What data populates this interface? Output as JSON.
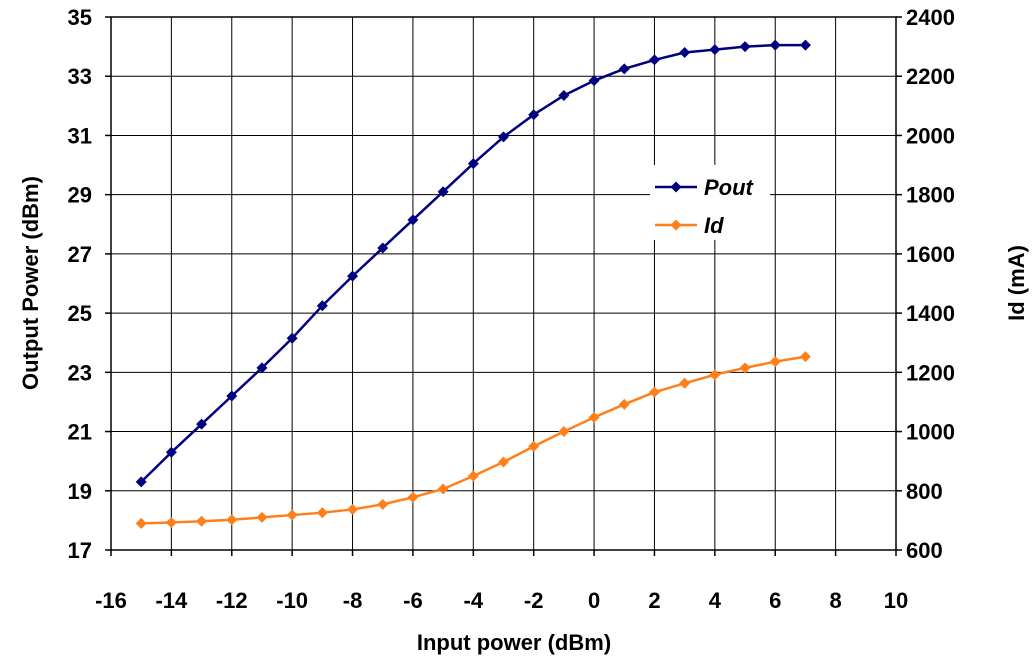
{
  "chart_data": {
    "type": "line",
    "xlabel": "Input power (dBm)",
    "ylabel": "Output Power (dBm)",
    "y2label": "Id (mA)",
    "xlim": [
      -16,
      10
    ],
    "ylim": [
      17,
      35
    ],
    "y2lim": [
      600,
      2400
    ],
    "xticks": [
      "-16",
      "-14",
      "-12",
      "-10",
      "-8",
      "-6",
      "-4",
      "-2",
      "0",
      "2",
      "4",
      "6",
      "8",
      "10"
    ],
    "yticks": [
      "17",
      "19",
      "21",
      "23",
      "25",
      "27",
      "29",
      "31",
      "33",
      "35"
    ],
    "y2ticks": [
      "600",
      "800",
      "1000",
      "1200",
      "1400",
      "1600",
      "1800",
      "2000",
      "2200",
      "2400"
    ],
    "x": [
      -15,
      -14,
      -13,
      -12,
      -11,
      -10,
      -9,
      -8,
      -7,
      -6,
      -5,
      -4,
      -3,
      -2,
      -1,
      0,
      1,
      2,
      3,
      4,
      5,
      6,
      7
    ],
    "grid": true,
    "legend_position": "center-right",
    "series": [
      {
        "name": "Pout",
        "axis": "left",
        "color": "#000080",
        "marker": "diamond",
        "values": [
          19.3,
          20.3,
          21.25,
          22.2,
          23.15,
          24.15,
          25.25,
          26.25,
          27.2,
          28.15,
          29.1,
          30.05,
          30.95,
          31.7,
          32.35,
          32.85,
          33.25,
          33.55,
          33.8,
          33.9,
          34.0,
          34.05,
          34.05
        ]
      },
      {
        "name": "Id",
        "axis": "right",
        "color": "#FF7F1A",
        "marker": "diamond",
        "values": [
          690,
          693,
          697,
          702,
          710,
          718,
          726,
          737,
          754,
          778,
          806,
          850,
          897,
          950,
          1000,
          1048,
          1092,
          1133,
          1163,
          1192,
          1215,
          1236,
          1253
        ]
      }
    ]
  }
}
